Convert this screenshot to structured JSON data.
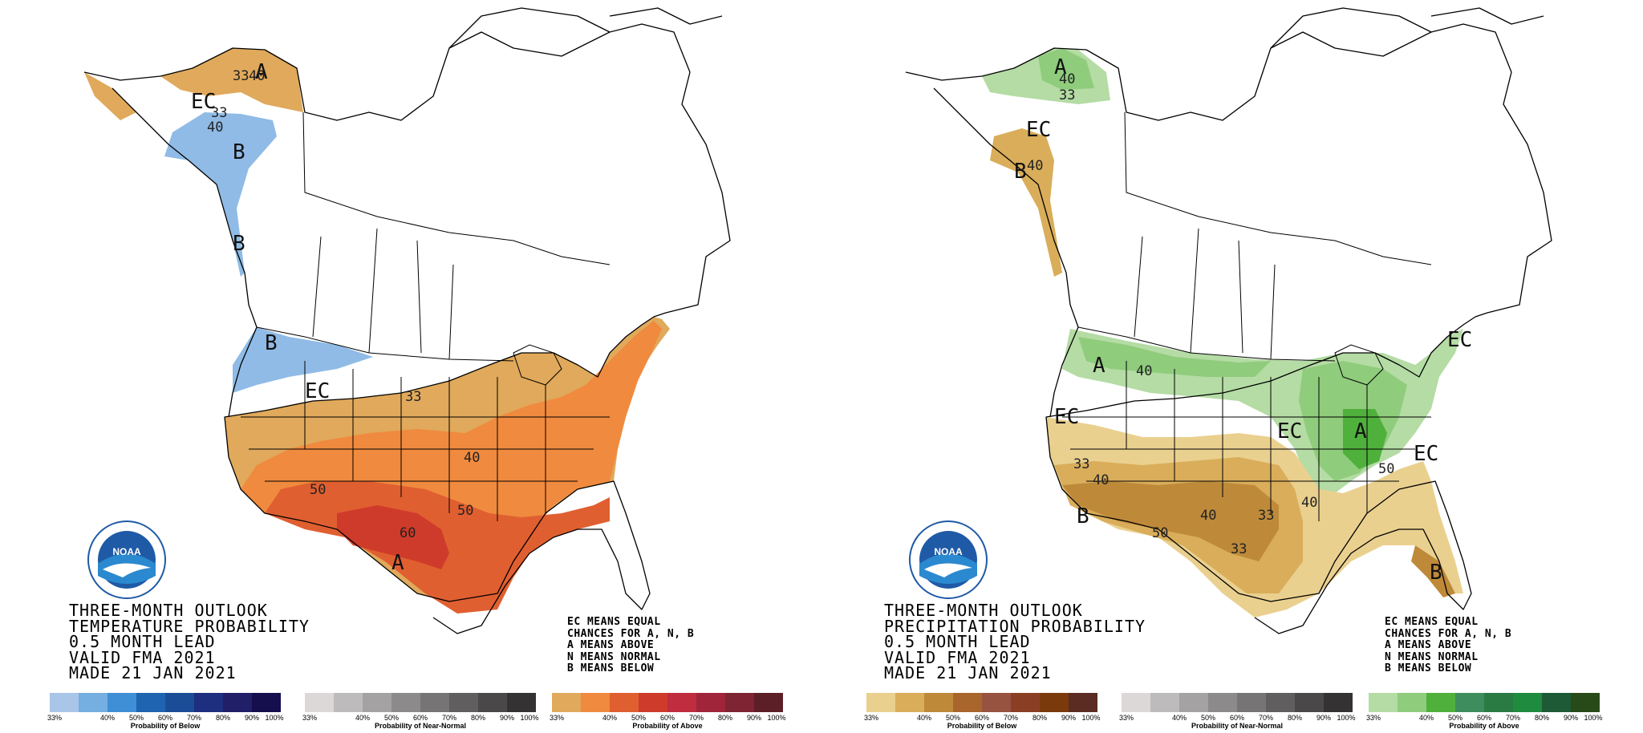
{
  "panels": [
    {
      "id": "temperature",
      "title_lines": [
        "THREE-MONTH OUTLOOK",
        "TEMPERATURE PROBABILITY",
        "0.5 MONTH LEAD",
        "VALID FMA 2021",
        "MADE 21 JAN 2021"
      ],
      "legend_note": [
        "EC MEANS EQUAL",
        "CHANCES FOR A, N, B",
        "A MEANS ABOVE",
        "N MEANS NORMAL",
        "B MEANS BELOW"
      ],
      "map_labels": [
        "A",
        "EC",
        "B",
        "B",
        "B",
        "EC",
        "A"
      ],
      "contour_labels": [
        "33",
        "40",
        "33",
        "40",
        "33",
        "40",
        "50",
        "60",
        "50"
      ],
      "scales": [
        {
          "caption": "Probability of Below",
          "ticks": [
            "33%",
            "40%",
            "50%",
            "60%",
            "70%",
            "80%",
            "90%",
            "100%"
          ],
          "colors": [
            "#a9c6e8",
            "#75aee0",
            "#3e8fd6",
            "#1f64b0",
            "#1b4d96",
            "#1d2f7e",
            "#201f67",
            "#150f4d"
          ]
        },
        {
          "caption": "Probability of Near-Normal",
          "ticks": [
            "33%",
            "40%",
            "50%",
            "60%",
            "70%",
            "80%",
            "90%",
            "100%"
          ],
          "colors": [
            "#dcd8d8",
            "#bdbbbb",
            "#a4a2a2",
            "#8c8a8a",
            "#767474",
            "#605e5e",
            "#4a4848",
            "#343232"
          ]
        },
        {
          "caption": "Probability of Above",
          "ticks": [
            "33%",
            "40%",
            "50%",
            "60%",
            "70%",
            "80%",
            "90%",
            "100%"
          ],
          "colors": [
            "#e0a95b",
            "#f08a3e",
            "#e05f30",
            "#cf3b2a",
            "#c02d3f",
            "#a0253a",
            "#7e2432",
            "#5c1f28"
          ]
        }
      ]
    },
    {
      "id": "precipitation",
      "title_lines": [
        "THREE-MONTH OUTLOOK",
        "PRECIPITATION PROBABILITY",
        "0.5 MONTH LEAD",
        "VALID FMA 2021",
        "MADE 21 JAN 2021"
      ],
      "legend_note": [
        "EC MEANS EQUAL",
        "CHANCES FOR A, N, B",
        "A MEANS ABOVE",
        "N MEANS NORMAL",
        "B MEANS BELOW"
      ],
      "map_labels": [
        "A",
        "EC",
        "B",
        "A",
        "EC",
        "EC",
        "A",
        "EC",
        "EC",
        "B",
        "B"
      ],
      "contour_labels": [
        "40",
        "33",
        "40",
        "40",
        "50",
        "33",
        "40",
        "50",
        "40",
        "33",
        "40",
        "33"
      ],
      "scales": [
        {
          "caption": "Probability of Below",
          "ticks": [
            "33%",
            "40%",
            "50%",
            "60%",
            "70%",
            "80%",
            "90%",
            "100%"
          ],
          "colors": [
            "#ead08f",
            "#d9ad5a",
            "#be8a3a",
            "#a8652c",
            "#985240",
            "#8a3f24",
            "#7a3a0c",
            "#5a2c22"
          ]
        },
        {
          "caption": "Probability of Near-Normal",
          "ticks": [
            "33%",
            "40%",
            "50%",
            "60%",
            "70%",
            "80%",
            "90%",
            "100%"
          ],
          "colors": [
            "#dcd8d8",
            "#bdbbbb",
            "#a4a2a2",
            "#8c8a8a",
            "#767474",
            "#605e5e",
            "#4a4848",
            "#343232"
          ]
        },
        {
          "caption": "Probability of Above",
          "ticks": [
            "33%",
            "40%",
            "50%",
            "60%",
            "70%",
            "80%",
            "90%",
            "100%"
          ],
          "colors": [
            "#b4dca4",
            "#8fcc7c",
            "#4fb03c",
            "#3d8e5c",
            "#2a7a44",
            "#1f8b3e",
            "#1d5a35",
            "#284a18"
          ]
        }
      ]
    }
  ],
  "logo": {
    "text": "NOAA"
  }
}
